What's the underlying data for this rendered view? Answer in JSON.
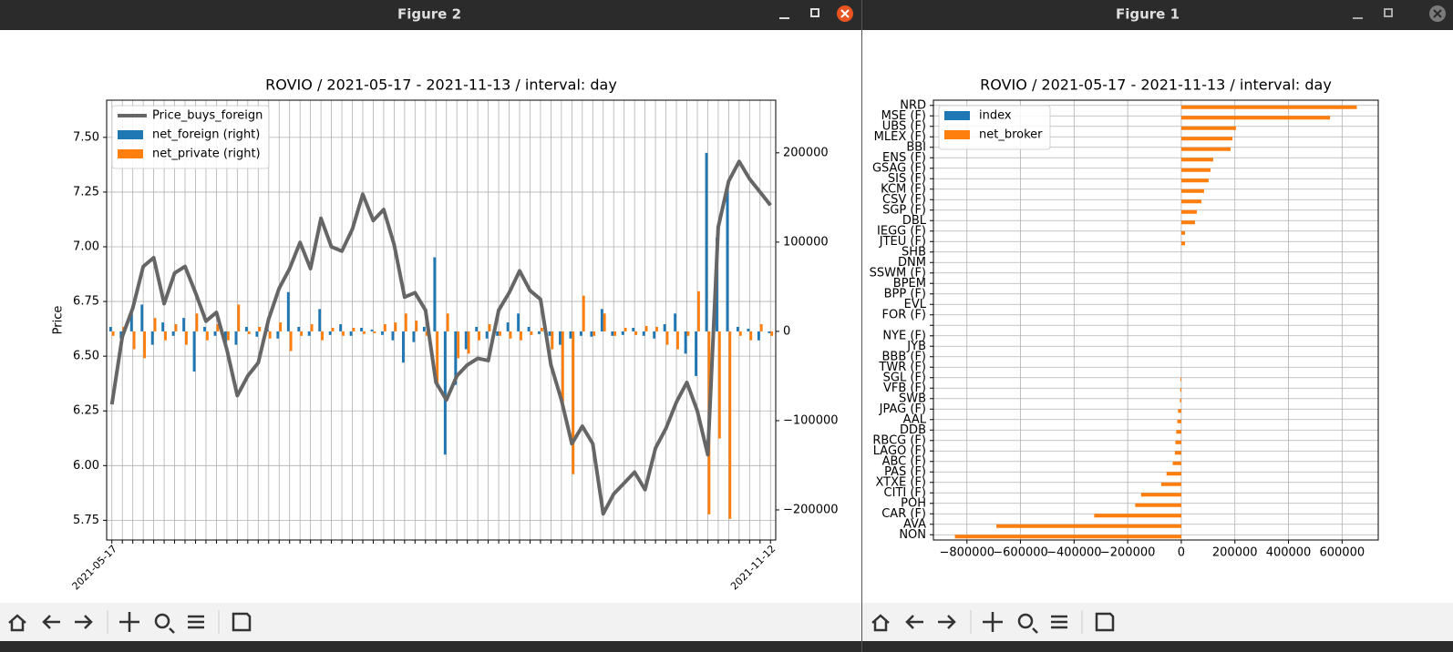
{
  "windows": [
    {
      "title": "Figure 2"
    },
    {
      "title": "Figure 1"
    }
  ],
  "chart_data": [
    {
      "type": "combo",
      "title": "ROVIO / 2021-05-17 - 2021-11-13 / interval: day",
      "ylabel": "Price",
      "categories": [
        "2021-05-17",
        null,
        null,
        null,
        null,
        null,
        null,
        null,
        null,
        null,
        null,
        null,
        null,
        null,
        null,
        null,
        null,
        null,
        null,
        null,
        null,
        null,
        null,
        null,
        null,
        null,
        null,
        null,
        null,
        null,
        null,
        null,
        null,
        null,
        null,
        null,
        null,
        null,
        null,
        null,
        null,
        null,
        null,
        null,
        null,
        null,
        null,
        null,
        null,
        null,
        null,
        null,
        null,
        null,
        null,
        null,
        null,
        null,
        null,
        null,
        null,
        null,
        null,
        "2021-11-12"
      ],
      "series": [
        {
          "name": "Price_buys_foreign",
          "color": "#666666",
          "values": [
            6.28,
            6.59,
            6.72,
            6.91,
            6.95,
            6.74,
            6.88,
            6.91,
            6.79,
            6.66,
            6.7,
            6.53,
            6.32,
            6.41,
            6.47,
            6.67,
            6.81,
            6.9,
            7.02,
            6.9,
            7.13,
            7.0,
            6.98,
            7.08,
            7.24,
            7.12,
            7.17,
            7.01,
            6.77,
            6.79,
            6.71,
            6.38,
            6.3,
            6.41,
            6.46,
            6.49,
            6.48,
            6.71,
            6.79,
            6.89,
            6.8,
            6.76,
            6.46,
            6.3,
            6.1,
            6.18,
            6.1,
            5.78,
            5.87,
            5.92,
            5.97,
            5.89,
            6.08,
            6.17,
            6.29,
            6.38,
            6.25,
            6.05,
            7.09,
            7.3,
            7.39,
            7.31,
            7.25,
            7.19
          ]
        },
        {
          "name": "net_foreign (right)",
          "color": "#1f77b4",
          "axis": "y2",
          "values": [
            5000,
            -8000,
            20000,
            30000,
            -15000,
            10000,
            -5000,
            15000,
            -45000,
            5000,
            -5000,
            -12000,
            -15000,
            5000,
            -6000,
            2000,
            -8000,
            44000,
            5000,
            -5000,
            25000,
            -4000,
            8000,
            -5000,
            4000,
            2000,
            -4000,
            -10000,
            -35000,
            -12000,
            5000,
            83000,
            -138000,
            -60000,
            -20000,
            5000,
            -8000,
            -5000,
            10000,
            20000,
            5000,
            -3000,
            -5000,
            -15000,
            -8000,
            -5000,
            -6000,
            25000,
            -5000,
            -4000,
            4000,
            -5000,
            -8000,
            8000,
            20000,
            -25000,
            -50000,
            200000,
            105000,
            160000,
            5000,
            3000,
            -10000,
            -2000
          ]
        },
        {
          "name": "net_private (right)",
          "color": "#ff7f0e",
          "axis": "y2",
          "values": [
            -5000,
            5000,
            -20000,
            -30000,
            15000,
            -10000,
            8000,
            -15000,
            20000,
            -10000,
            8000,
            -10000,
            30000,
            -3000,
            5000,
            -8000,
            10000,
            -22000,
            -5000,
            8000,
            -10000,
            4000,
            -5000,
            4000,
            -3000,
            -2000,
            8000,
            10000,
            20000,
            12000,
            -5000,
            -60000,
            20000,
            -30000,
            -25000,
            -10000,
            8000,
            -5000,
            -8000,
            -10000,
            -4000,
            4000,
            -20000,
            -80000,
            -160000,
            40000,
            -5000,
            20000,
            -5000,
            4000,
            -4000,
            6000,
            5000,
            -15000,
            -20000,
            -5000,
            45000,
            -205000,
            -120000,
            -210000,
            -5000,
            -10000,
            8000,
            -5000
          ]
        }
      ],
      "ylim": [
        5.66,
        7.67
      ],
      "yticks": [
        5.75,
        {
          "value": 6,
          "label": "6.00"
        },
        6.25,
        {
          "value": 6.5,
          "label": "6.50"
        },
        6.75,
        {
          "value": 7,
          "label": "7.00"
        },
        7.25,
        {
          "value": 7.5,
          "label": "7.50"
        }
      ],
      "y2lim": [
        -233700,
        259000
      ],
      "y2ticks": [
        {
          "value": -200000,
          "label": "−200000"
        },
        {
          "value": -100000,
          "label": "−100000"
        },
        0,
        100000,
        200000
      ],
      "grid": true,
      "legend": "upper left"
    },
    {
      "type": "barh",
      "title": "ROVIO / 2021-05-17 - 2021-11-13 / interval: day",
      "categories": [
        "NRD",
        "MSE (F)",
        "UBS (F)",
        "MLEX (F)",
        "BBI",
        "ENS (F)",
        "GSAG (F)",
        "SIS (F)",
        "KCM (F)",
        "CSV (F)",
        "SGP (F)",
        "DBL",
        "IEGG (F)",
        "JTEU (F)",
        "SHB",
        "DNM",
        "SSWM (F)",
        "BPEM",
        "BPP (F)",
        "EVL",
        "FOR (F)",
        null,
        "NYE (F)",
        "JYB",
        "BBB (F)",
        "TWR (F)",
        "SGL (F)",
        "VFB (F)",
        "SWB",
        "JPAG (F)",
        "AAL",
        "DDB",
        "RBCG (F)",
        "LAGO (F)",
        "ABC (F)",
        "PAS (F)",
        "XTXE (F)",
        "CITI (F)",
        "POH",
        "CAR (F)",
        "AVA",
        "NON"
      ],
      "series": [
        {
          "name": "index",
          "color": "#1f77b4",
          "values": [
            null,
            null,
            null,
            null,
            null,
            null,
            null,
            null,
            null,
            null,
            null,
            null,
            null,
            null,
            null,
            null,
            null,
            null,
            null,
            null,
            null,
            null,
            null,
            null,
            null,
            null,
            null,
            null,
            null,
            null,
            null,
            null,
            null,
            null,
            null,
            null,
            null,
            null,
            null,
            null,
            null,
            null
          ]
        },
        {
          "name": "net_broker",
          "color": "#ff7f0e",
          "values": [
            655000,
            555000,
            204000,
            191000,
            184000,
            119000,
            109000,
            102000,
            85000,
            75000,
            58000,
            51000,
            14000,
            14000,
            0,
            0,
            0,
            0,
            0,
            0,
            0,
            0,
            0,
            0,
            0,
            0,
            -3000,
            -4000,
            -5000,
            -12000,
            -15000,
            -19000,
            -22000,
            -24000,
            -32000,
            -55000,
            -75000,
            -150000,
            -172000,
            -325000,
            -690000,
            -845000
          ]
        }
      ],
      "xlim": [
        -925000,
        735000
      ],
      "xticks": [
        {
          "value": -800000,
          "label": "−800000"
        },
        {
          "value": -600000,
          "label": "−600000"
        },
        {
          "value": -400000,
          "label": "−400000"
        },
        {
          "value": -200000,
          "label": "−200000"
        },
        0,
        200000,
        400000,
        600000
      ],
      "grid": true,
      "legend": "upper left"
    }
  ]
}
